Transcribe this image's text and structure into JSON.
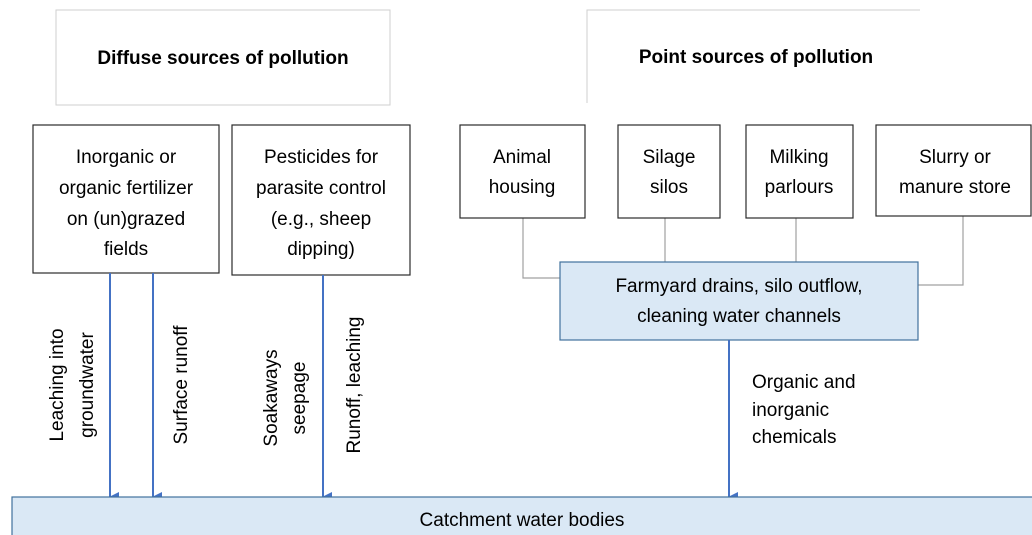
{
  "headers": {
    "diffuse": "Diffuse sources of pollution",
    "point": "Point sources of pollution"
  },
  "diffuse_sources": [
    {
      "lines": [
        "Inorganic or",
        "organic fertilizer",
        "on (un)grazed",
        "fields"
      ]
    },
    {
      "lines": [
        "Pesticides for",
        "parasite control",
        "(e.g., sheep",
        "dipping)"
      ]
    }
  ],
  "point_sources": [
    {
      "lines": [
        "Animal",
        "housing"
      ]
    },
    {
      "lines": [
        "Silage",
        "silos"
      ]
    },
    {
      "lines": [
        "Milking",
        "parlours"
      ]
    },
    {
      "lines": [
        "Slurry or",
        "manure store"
      ]
    }
  ],
  "collector": {
    "lines": [
      "Farmyard drains, silo outflow,",
      "cleaning water channels"
    ]
  },
  "flows": [
    {
      "lines": [
        "Leaching into",
        "groundwater"
      ]
    },
    {
      "lines": [
        "Surface runoff"
      ]
    },
    {
      "lines": [
        "Soakaways",
        "seepage"
      ]
    },
    {
      "lines": [
        "Runoff, leaching"
      ]
    },
    {
      "lines": [
        "Organic and",
        "inorganic",
        "chemicals"
      ]
    }
  ],
  "sink": "Catchment water bodies"
}
